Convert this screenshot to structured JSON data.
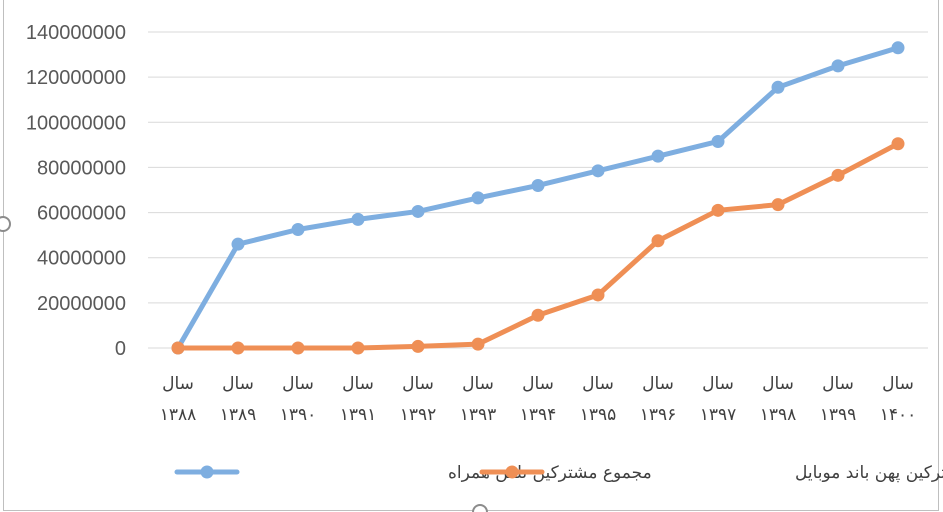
{
  "chart_data": {
    "type": "line",
    "title": "",
    "xlabel": "",
    "ylabel": "",
    "ylim": [
      0,
      140000000
    ],
    "yticks": [
      0,
      20000000,
      40000000,
      60000000,
      80000000,
      100000000,
      120000000,
      140000000
    ],
    "ytick_labels": [
      "0",
      "20000000",
      "40000000",
      "60000000",
      "80000000",
      "100000000",
      "120000000",
      "140000000"
    ],
    "grid": true,
    "legend_position": "bottom",
    "categories": [
      {
        "prefix": "سال",
        "year": "۱۳۸۸"
      },
      {
        "prefix": "سال",
        "year": "۱۳۸۹"
      },
      {
        "prefix": "سال",
        "year": "۱۳۹۰"
      },
      {
        "prefix": "سال",
        "year": "۱۳۹۱"
      },
      {
        "prefix": "سال",
        "year": "۱۳۹۲"
      },
      {
        "prefix": "سال",
        "year": "۱۳۹۳"
      },
      {
        "prefix": "سال",
        "year": "۱۳۹۴"
      },
      {
        "prefix": "سال",
        "year": "۱۳۹۵"
      },
      {
        "prefix": "سال",
        "year": "۱۳۹۶"
      },
      {
        "prefix": "سال",
        "year": "۱۳۹۷"
      },
      {
        "prefix": "سال",
        "year": "۱۳۹۸"
      },
      {
        "prefix": "سال",
        "year": "۱۳۹۹"
      },
      {
        "prefix": "سال",
        "year": "۱۴۰۰"
      }
    ],
    "series": [
      {
        "name": "مجموع مشترکین تلفن همراه",
        "color": "#7eaee0",
        "values": [
          0,
          46000000,
          52500000,
          57000000,
          60500000,
          66500000,
          72000000,
          78500000,
          85000000,
          91500000,
          115500000,
          125000000,
          133000000
        ]
      },
      {
        "name": "مجموع مشترکین پهن باند موبایل",
        "color": "#ef8f55",
        "values": [
          0,
          0,
          0,
          0,
          700000,
          1700000,
          14500000,
          23500000,
          47500000,
          61000000,
          63500000,
          76500000,
          90500000
        ]
      }
    ]
  }
}
